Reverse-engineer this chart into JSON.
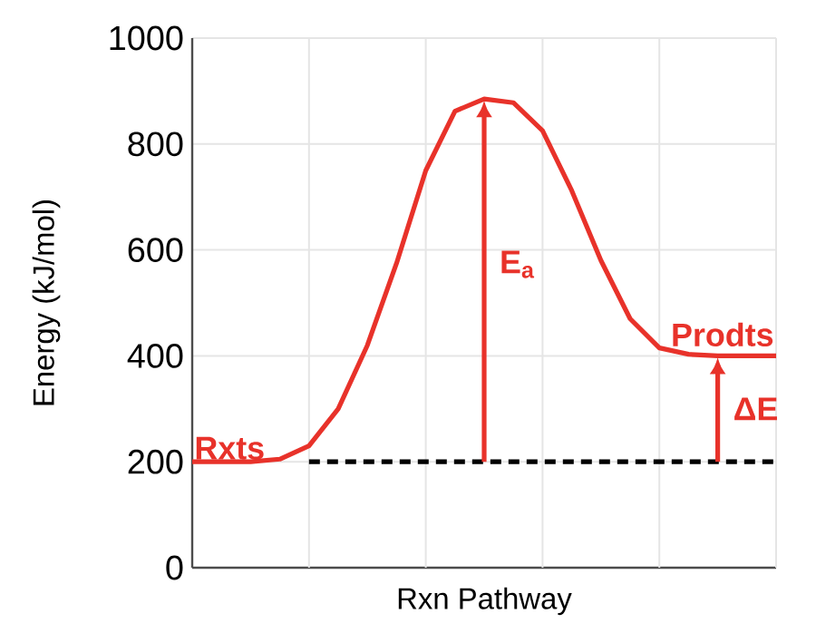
{
  "chart_data": {
    "type": "line",
    "xlabel": "Rxn Pathway",
    "ylabel": "Energy (kJ/mol)",
    "categories": [
      null,
      null,
      null,
      null,
      null,
      null,
      null,
      null,
      null,
      null,
      null,
      null,
      null,
      null,
      null,
      null,
      null,
      null,
      null,
      null,
      null
    ],
    "ylim": [
      0,
      1000
    ],
    "yticks": [
      0,
      200,
      400,
      600,
      800,
      1000
    ],
    "tick_labels": "y",
    "grid": true,
    "marker": "none",
    "series": [
      {
        "color": "#e8322a",
        "line_style": "solid",
        "values": [
          200,
          200,
          200,
          205,
          230,
          300,
          420,
          575,
          750,
          862,
          885,
          878,
          825,
          712,
          580,
          470,
          415,
          403,
          400,
          400,
          400
        ]
      },
      {
        "color": "#000000",
        "line_style": "dashed",
        "values": [
          null,
          null,
          null,
          null,
          200,
          200,
          200,
          200,
          200,
          200,
          200,
          200,
          200,
          200,
          200,
          200,
          200,
          200,
          200,
          200,
          200
        ]
      }
    ],
    "annotations": [
      "Rxts",
      "Prodts",
      "E$_{a}$",
      "ΔE"
    ]
  }
}
